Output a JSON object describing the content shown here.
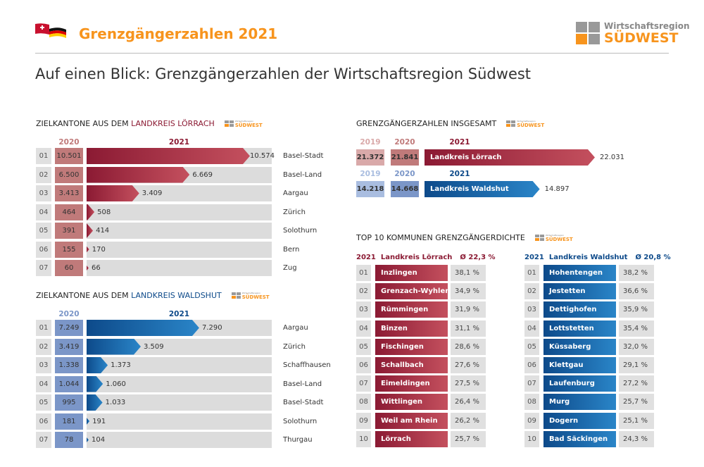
{
  "header": {
    "title": "Grenzgängerzahlen 2021",
    "logo_line1": "Wirtschaftsregion",
    "logo_line2": "SÜDWEST",
    "subtitle": "Auf einen Blick: Grenzgängerzahlen der Wirtschaftsregion Südwest"
  },
  "colors": {
    "orange": "#f7941d",
    "red_dark": "#8b1a33",
    "red_light": "#c4505e",
    "red_2020": "#c07a7a",
    "red_2019": "#d9a9a9",
    "blue_dark": "#0d4a8a",
    "blue_light": "#2a85c8",
    "blue_2020": "#7b96c8",
    "blue_2019": "#a9bde0",
    "track": "#dcdcdc"
  },
  "chart_data": [
    {
      "type": "bar",
      "title_prefix": "ZIELKANTONE AUS DEM ",
      "title_highlight": "LANDKREIS LÖRRACH",
      "year_prev": "2020",
      "year_cur": "2021",
      "indices": [
        "01",
        "02",
        "03",
        "04",
        "05",
        "06",
        "07"
      ],
      "categories": [
        "Basel-Stadt",
        "Basel-Land",
        "Aargau",
        "Zürich",
        "Solothurn",
        "Bern",
        "Zug"
      ],
      "series": [
        {
          "name": "2020",
          "values": [
            10501,
            6500,
            3413,
            464,
            391,
            155,
            60
          ],
          "labels": [
            "10.501",
            "6.500",
            "3.413",
            "464",
            "391",
            "155",
            "60"
          ]
        },
        {
          "name": "2021",
          "values": [
            10574,
            6669,
            3409,
            508,
            414,
            170,
            66
          ],
          "labels": [
            "10.574",
            "6.669",
            "3.409",
            "508",
            "414",
            "170",
            "66"
          ]
        }
      ]
    },
    {
      "type": "bar",
      "title_prefix": "ZIELKANTONE AUS DEM ",
      "title_highlight": "LANDKREIS WALDSHUT",
      "year_prev": "2020",
      "year_cur": "2021",
      "indices": [
        "01",
        "02",
        "03",
        "04",
        "05",
        "06",
        "07"
      ],
      "categories": [
        "Aargau",
        "Zürich",
        "Schaffhausen",
        "Basel-Land",
        "Basel-Stadt",
        "Solothurn",
        "Thurgau"
      ],
      "series": [
        {
          "name": "2020",
          "values": [
            7249,
            3419,
            1338,
            1044,
            995,
            181,
            78
          ],
          "labels": [
            "7.249",
            "3.419",
            "1.338",
            "1.044",
            "995",
            "181",
            "78"
          ]
        },
        {
          "name": "2021",
          "values": [
            7290,
            3509,
            1373,
            1060,
            1033,
            191,
            104
          ],
          "labels": [
            "7.290",
            "3.509",
            "1.373",
            "1.060",
            "1.033",
            "191",
            "104"
          ]
        }
      ]
    },
    {
      "type": "bar",
      "title": "GRENZGÄNGERZAHLEN INSGESAMT",
      "rows": [
        {
          "name": "Landkreis Lörrach",
          "years": [
            "2019",
            "2020",
            "2021"
          ],
          "values": [
            21372,
            21841,
            22031
          ],
          "labels": [
            "21.372",
            "21.841",
            "22.031"
          ]
        },
        {
          "name": "Landkreis Waldshut",
          "years": [
            "2019",
            "2020",
            "2021"
          ],
          "values": [
            14218,
            14668,
            14897
          ],
          "labels": [
            "14.218",
            "14.668",
            "14.897"
          ]
        }
      ]
    },
    {
      "type": "table",
      "title": "TOP 10 KOMMUNEN GRENZGÄNGERDICHTE",
      "groups": [
        {
          "year": "2021",
          "district": "Landkreis Lörrach",
          "avg": "Ø 22,3 %",
          "rows": [
            [
              "01",
              "Inzlingen",
              "38,1 %"
            ],
            [
              "02",
              "Grenzach-Wyhlen",
              "34,9 %"
            ],
            [
              "03",
              "Rümmingen",
              "31,9 %"
            ],
            [
              "04",
              "Binzen",
              "31,1 %"
            ],
            [
              "05",
              "Fischingen",
              "28,6 %"
            ],
            [
              "06",
              "Schallbach",
              "27,6 %"
            ],
            [
              "07",
              "Eimeldingen",
              "27,5 %"
            ],
            [
              "08",
              "Wittlingen",
              "26,4 %"
            ],
            [
              "09",
              "Weil am Rhein",
              "26,2 %"
            ],
            [
              "10",
              "Lörrach",
              "25,7 %"
            ]
          ]
        },
        {
          "year": "2021",
          "district": "Landkreis Waldshut",
          "avg": "Ø 20,8 %",
          "rows": [
            [
              "01",
              "Hohentengen",
              "38,2 %"
            ],
            [
              "02",
              "Jestetten",
              "36,6 %"
            ],
            [
              "03",
              "Dettighofen",
              "35,9 %"
            ],
            [
              "04",
              "Lottstetten",
              "35,4 %"
            ],
            [
              "05",
              "Küssaberg",
              "32,0 %"
            ],
            [
              "06",
              "Klettgau",
              "29,1 %"
            ],
            [
              "07",
              "Laufenburg",
              "27,2 %"
            ],
            [
              "08",
              "Murg",
              "25,7 %"
            ],
            [
              "09",
              "Dogern",
              "25,1 %"
            ],
            [
              "10",
              "Bad Säckingen",
              "24,3 %"
            ]
          ]
        }
      ]
    }
  ]
}
